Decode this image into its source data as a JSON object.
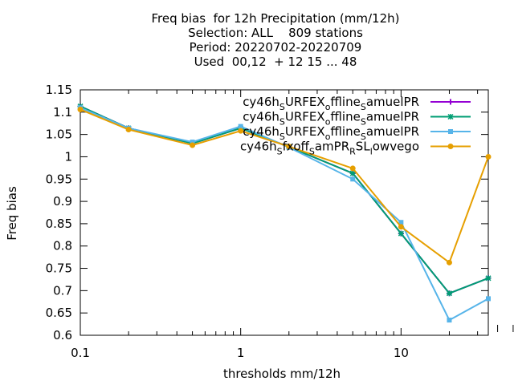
{
  "chart_data": {
    "type": "line",
    "title_lines": [
      "Freq bias  for 12h Precipitation (mm/12h)",
      "Selection: ALL    809 stations",
      "Period: 20220702-20220709",
      "Used  00,12  + 12 15 ... 48"
    ],
    "xlabel": "thresholds mm/12h",
    "ylabel": "Freq bias",
    "x_scale": "log",
    "xlim": [
      0.1,
      35
    ],
    "ylim": [
      0.6,
      1.15
    ],
    "grid": false,
    "legend_position": "top-right",
    "x_ticks": [
      0.1,
      1,
      10
    ],
    "x_tick_labels": [
      "0.1",
      "1",
      "10"
    ],
    "y_ticks": [
      0.6,
      0.65,
      0.7,
      0.75,
      0.8,
      0.85,
      0.9,
      0.95,
      1.0,
      1.05,
      1.1,
      1.15
    ],
    "y_tick_labels": [
      "0.6",
      "0.65",
      "0.7",
      "0.75",
      "0.8",
      "0.85",
      "0.9",
      "0.95",
      "1",
      "1.05",
      "1.1",
      "1.15"
    ],
    "x": [
      0.1,
      0.2,
      0.5,
      1,
      2,
      5,
      10,
      20,
      35
    ],
    "series": [
      {
        "legend_parts": [
          "cy46h",
          "S",
          "URFEX",
          "o",
          "ffline",
          "S",
          "amuelPR"
        ],
        "color": "#9400d3",
        "marker": "plus",
        "values": [
          1.113,
          1.064,
          1.03,
          1.064,
          1.022,
          0.963,
          0.828,
          0.694,
          0.728
        ]
      },
      {
        "legend_parts": [
          "cy46h",
          "S",
          "URFEX",
          "o",
          "ffline",
          "S",
          "amuelPR"
        ],
        "color": "#009e73",
        "marker": "star",
        "values": [
          1.113,
          1.064,
          1.03,
          1.064,
          1.022,
          0.963,
          0.828,
          0.694,
          0.728
        ]
      },
      {
        "legend_parts": [
          "cy46h",
          "S",
          "URFEX",
          "o",
          "ffline",
          "S",
          "amuelPR"
        ],
        "color": "#56b4e9",
        "marker": "box",
        "values": [
          1.11,
          1.064,
          1.033,
          1.068,
          1.021,
          0.95,
          0.853,
          0.634,
          0.682
        ]
      },
      {
        "legend_parts": [
          "cy46h",
          "S",
          "fxoff",
          "S",
          "amPR",
          "R",
          "SL",
          "l",
          "owvego"
        ],
        "color": "#e69f00",
        "marker": "circle",
        "values": [
          1.106,
          1.061,
          1.026,
          1.058,
          1.023,
          0.974,
          0.843,
          0.763,
          1.0
        ]
      }
    ]
  }
}
